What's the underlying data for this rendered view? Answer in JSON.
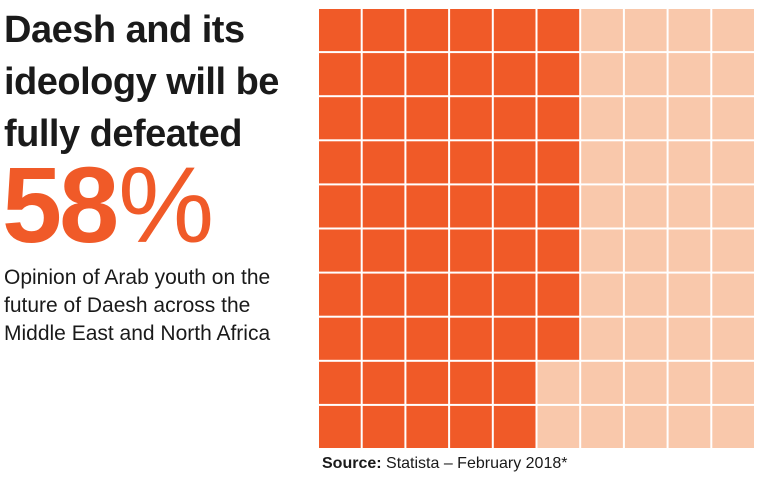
{
  "headline": "Daesh and its ideology will be fully defeated",
  "big_value": "58",
  "big_unit": "%",
  "description": "Opinion of Arab youth on the future of Daesh across the Middle East and North Africa",
  "source": {
    "label": "Source:",
    "text": " Statista – February 2018*"
  },
  "colors": {
    "filled": "#f05a28",
    "empty": "#f9c8ab",
    "headline_accent": "#f05a28"
  },
  "chart_data": {
    "type": "waffle",
    "title": "Daesh and its ideology will be fully defeated",
    "value": 58,
    "total": 100,
    "rows": 10,
    "cols": 10,
    "fill_order": "column-major, top to bottom"
  }
}
